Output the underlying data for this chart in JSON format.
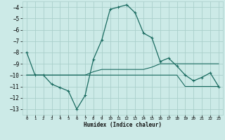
{
  "title": "",
  "xlabel": "Humidex (Indice chaleur)",
  "background_color": "#cceae7",
  "grid_color": "#aacfcb",
  "line_color": "#1a6b60",
  "xlim": [
    -0.5,
    23.5
  ],
  "ylim": [
    -13.5,
    -3.5
  ],
  "xticks": [
    0,
    1,
    2,
    3,
    4,
    5,
    6,
    7,
    8,
    9,
    10,
    11,
    12,
    13,
    14,
    15,
    16,
    17,
    18,
    19,
    20,
    21,
    22,
    23
  ],
  "yticks": [
    -13,
    -12,
    -11,
    -10,
    -9,
    -8,
    -7,
    -6,
    -5,
    -4
  ],
  "line1_x": [
    0,
    1,
    2,
    3,
    4,
    5,
    6,
    7,
    8,
    9,
    10,
    11,
    12,
    13,
    14,
    15,
    16,
    17,
    18,
    19,
    20,
    21,
    22,
    23
  ],
  "line1_y": [
    -8.0,
    -10.0,
    -10.0,
    -10.8,
    -11.1,
    -11.4,
    -13.0,
    -11.8,
    -8.6,
    -6.9,
    -4.2,
    -4.0,
    -3.8,
    -4.5,
    -6.3,
    -6.7,
    -8.8,
    -8.5,
    -9.2,
    -10.0,
    -10.5,
    -10.2,
    -9.8,
    -11.0
  ],
  "line2_x": [
    0,
    1,
    2,
    3,
    4,
    5,
    6,
    7,
    8,
    9,
    10,
    11,
    12,
    13,
    14,
    15,
    16,
    17,
    18,
    19,
    20,
    21,
    22,
    23
  ],
  "line2_y": [
    -10,
    -10,
    -10,
    -10,
    -10,
    -10,
    -10,
    -10,
    -9.7,
    -9.5,
    -9.5,
    -9.5,
    -9.5,
    -9.5,
    -9.5,
    -9.3,
    -9,
    -9,
    -9,
    -9,
    -9,
    -9,
    -9,
    -9
  ],
  "line3_x": [
    0,
    1,
    2,
    3,
    4,
    5,
    6,
    7,
    8,
    9,
    10,
    11,
    12,
    13,
    14,
    15,
    16,
    17,
    18,
    19,
    20,
    21,
    22,
    23
  ],
  "line3_y": [
    -10,
    -10,
    -10,
    -10,
    -10,
    -10,
    -10,
    -10,
    -10,
    -10,
    -10,
    -10,
    -10,
    -10,
    -10,
    -10,
    -10,
    -10,
    -10,
    -11,
    -11,
    -11,
    -11,
    -11
  ]
}
